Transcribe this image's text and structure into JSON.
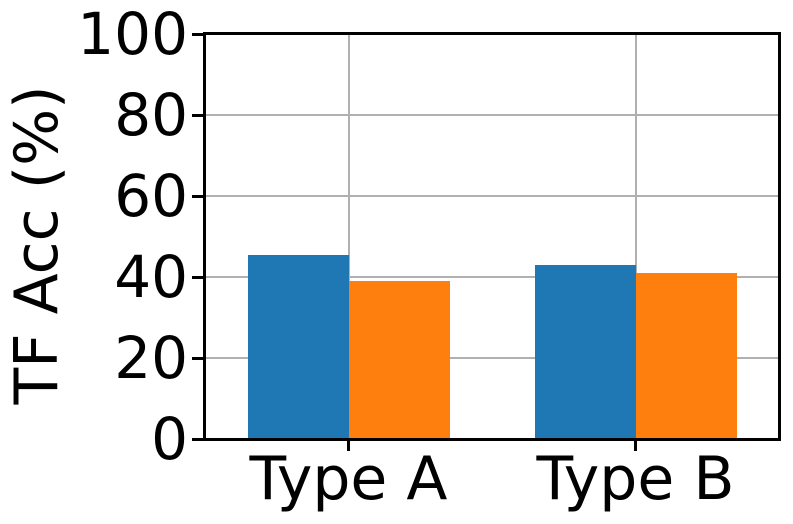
{
  "chart_data": {
    "type": "bar",
    "title": "",
    "xlabel": "",
    "ylabel": "TF Acc (%)",
    "categories": [
      "Type A",
      "Type B"
    ],
    "series": [
      {
        "name": "series-blue",
        "color": "#1f77b4",
        "values": [
          45.5,
          43.0
        ]
      },
      {
        "name": "series-orange",
        "color": "#ff7f0e",
        "values": [
          39.0,
          41.0
        ]
      }
    ],
    "ylim": [
      0,
      100
    ],
    "yticks": [
      0,
      20,
      40,
      60,
      80,
      100
    ],
    "grid": true,
    "grid_color": "#b0b0b0",
    "spine_color": "#000000",
    "legend": "none",
    "background_color": "#ffffff"
  }
}
